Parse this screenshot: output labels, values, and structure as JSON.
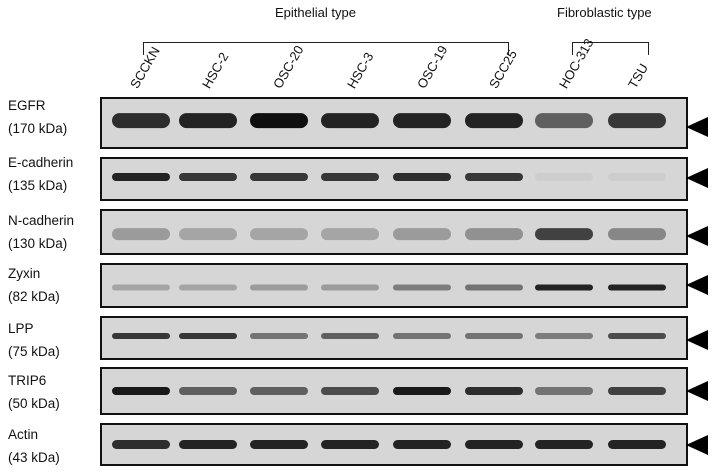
{
  "groups": [
    {
      "label": "Epithelial type"
    },
    {
      "label": "Fibroblastic type"
    }
  ],
  "lanes": [
    "SCCKN",
    "HSC-2",
    "OSC-20",
    "HSC-3",
    "OSC-19",
    "SCC25",
    "HOC-313",
    "TSU"
  ],
  "rows": [
    {
      "name": "EGFR",
      "size": "(170 kDa)",
      "intensities": [
        0.85,
        0.9,
        1.0,
        0.9,
        0.9,
        0.9,
        0.6,
        0.8
      ]
    },
    {
      "name": "E-cadherin",
      "size": "(135 kDa)",
      "intensities": [
        0.9,
        0.8,
        0.8,
        0.8,
        0.85,
        0.8,
        0.05,
        0.05
      ]
    },
    {
      "name": "N-cadherin",
      "size": "(130 kDa)",
      "intensities": [
        0.3,
        0.25,
        0.25,
        0.25,
        0.3,
        0.35,
        0.75,
        0.4
      ]
    },
    {
      "name": "Zyxin",
      "size": "(82 kDa)",
      "intensities": [
        0.25,
        0.25,
        0.3,
        0.3,
        0.45,
        0.5,
        0.9,
        0.9
      ]
    },
    {
      "name": "LPP",
      "size": "(75 kDa)",
      "intensities": [
        0.8,
        0.8,
        0.5,
        0.6,
        0.5,
        0.5,
        0.45,
        0.7
      ]
    },
    {
      "name": "TRIP6",
      "size": "(50 kDa)",
      "intensities": [
        0.95,
        0.6,
        0.6,
        0.7,
        0.95,
        0.85,
        0.5,
        0.75
      ]
    },
    {
      "name": "Actin",
      "size": "(43 kDa)",
      "intensities": [
        0.85,
        0.9,
        0.9,
        0.9,
        0.9,
        0.9,
        0.9,
        0.9
      ]
    }
  ]
}
